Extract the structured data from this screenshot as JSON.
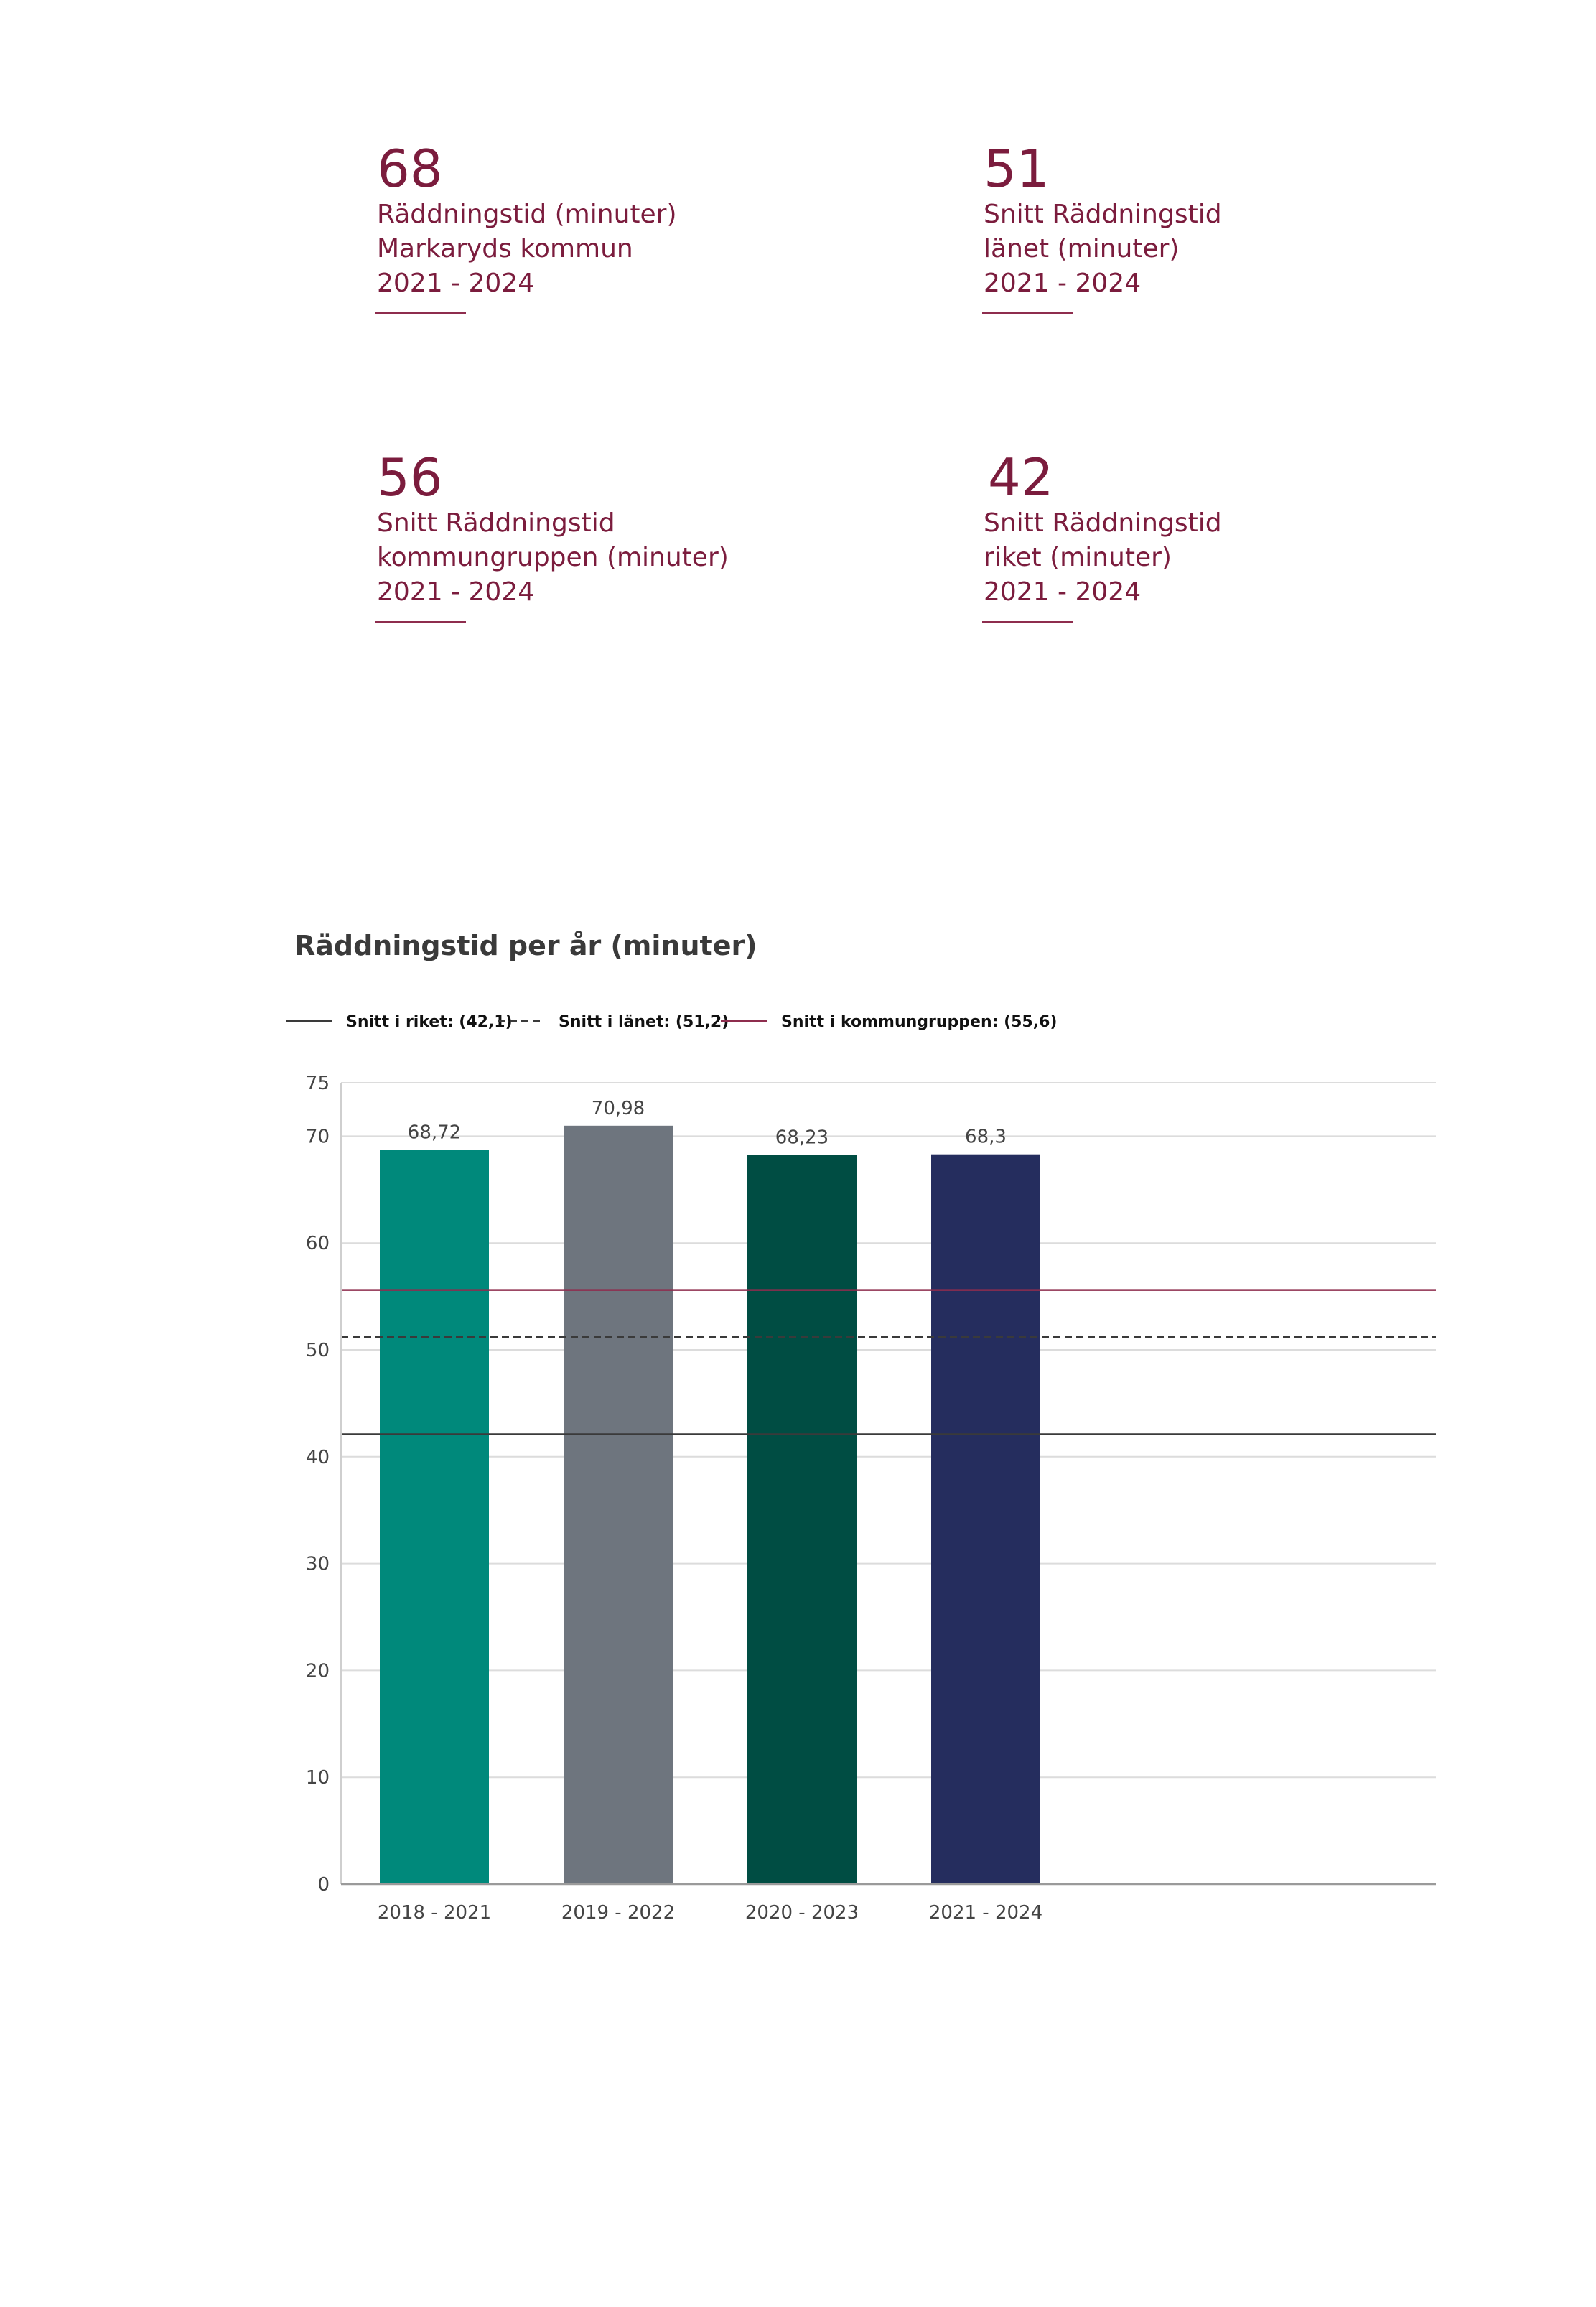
{
  "stats": [
    {
      "value": "68",
      "lines": [
        "Räddningstid (minuter)",
        "Markaryds kommun",
        "2021 - 2024"
      ]
    },
    {
      "value": "51",
      "lines": [
        "Snitt Räddningstid",
        "länet (minuter)",
        "2021 - 2024"
      ]
    },
    {
      "value": "56",
      "lines": [
        "Snitt Räddningstid",
        "kommungruppen (minuter)",
        "2021 - 2024"
      ]
    },
    {
      "value": "42",
      "lines": [
        "Snitt Räddningstid",
        "riket (minuter)",
        "2021 - 2024"
      ]
    }
  ],
  "chart_data": {
    "type": "bar",
    "title": "Räddningstid per år (minuter)",
    "categories": [
      "2018 - 2021",
      "2019 - 2022",
      "2020 - 2023",
      "2021 - 2024"
    ],
    "values": [
      68.72,
      70.98,
      68.23,
      68.3
    ],
    "value_labels": [
      "68,72",
      "70,98",
      "68,23",
      "68,3"
    ],
    "bar_colors": [
      "#00897b",
      "#6e757e",
      "#004d43",
      "#252d5e"
    ],
    "ylim": [
      0,
      75
    ],
    "yticks": [
      0,
      10,
      20,
      30,
      40,
      50,
      60,
      70,
      75
    ],
    "grid": true,
    "legend_position": "top-left",
    "reference_lines": [
      {
        "label": "Snitt i riket: (42,1)",
        "value": 42.1,
        "style": "solid",
        "color": "#3a3a3a"
      },
      {
        "label": "Snitt i länet: (51,2)",
        "value": 51.2,
        "style": "dashed",
        "color": "#3a3a3a"
      },
      {
        "label": "Snitt i kommungruppen: (55,6)",
        "value": 55.6,
        "style": "solid",
        "color": "#8e2d4e"
      }
    ]
  }
}
